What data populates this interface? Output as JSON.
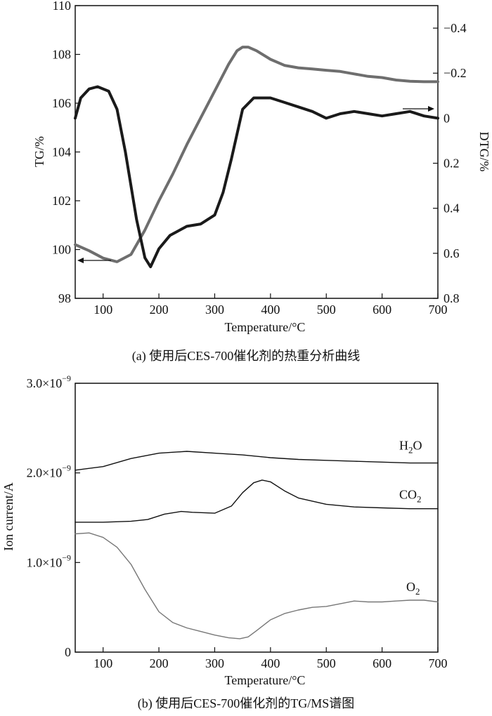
{
  "chart_data": [
    {
      "type": "line",
      "caption": "(a) 使用后CES-700催化剂的热重分析曲线",
      "xlabel": "Temperature/°C",
      "ylabel": "TG/%",
      "y2label": "DTG/%",
      "xlim": [
        50,
        700
      ],
      "ylim": [
        98,
        110
      ],
      "y2lim": [
        0.8,
        -0.5
      ],
      "y2_inverted": true,
      "xticks": [
        100,
        200,
        300,
        400,
        500,
        600,
        700
      ],
      "yticks": [
        98,
        100,
        102,
        104,
        106,
        108,
        110
      ],
      "y2ticks": [
        0.8,
        0.6,
        0.4,
        0.2,
        0,
        -0.2,
        -0.4
      ],
      "y2tick_labels": [
        "0.8",
        "0.6",
        "0.4",
        "0.2",
        "0",
        "−0.2",
        "−0.4"
      ],
      "series": [
        {
          "axis": "left",
          "color": "#6e6e6e",
          "x": [
            50,
            75,
            100,
            125,
            150,
            175,
            200,
            225,
            250,
            275,
            300,
            325,
            340,
            350,
            360,
            375,
            400,
            425,
            450,
            475,
            500,
            525,
            550,
            575,
            600,
            625,
            650,
            675,
            700
          ],
          "y": [
            100.2,
            99.95,
            99.65,
            99.5,
            99.8,
            100.8,
            102.0,
            103.1,
            104.3,
            105.4,
            106.5,
            107.6,
            108.15,
            108.3,
            108.3,
            108.15,
            107.8,
            107.55,
            107.45,
            107.4,
            107.35,
            107.3,
            107.2,
            107.1,
            107.05,
            106.95,
            106.9,
            106.88,
            106.88
          ]
        },
        {
          "axis": "right",
          "color": "#1a1a1a",
          "x": [
            50,
            60,
            75,
            90,
            110,
            125,
            140,
            160,
            175,
            185,
            200,
            220,
            250,
            275,
            300,
            315,
            330,
            350,
            370,
            385,
            400,
            425,
            450,
            475,
            500,
            525,
            550,
            575,
            600,
            625,
            650,
            675,
            700
          ],
          "y": [
            0.0,
            -0.09,
            -0.13,
            -0.14,
            -0.12,
            -0.04,
            0.15,
            0.45,
            0.62,
            0.66,
            0.58,
            0.52,
            0.48,
            0.47,
            0.43,
            0.33,
            0.18,
            -0.04,
            -0.09,
            -0.09,
            -0.09,
            -0.07,
            -0.05,
            -0.03,
            0.0,
            -0.02,
            -0.03,
            -0.02,
            -0.01,
            -0.02,
            -0.03,
            -0.01,
            0.0
          ]
        }
      ]
    },
    {
      "type": "line",
      "caption": "(b) 使用后CES-700催化剂的TG/MS谱图",
      "xlabel": "Temperature/°C",
      "ylabel": "Ion current/A",
      "xlim": [
        50,
        700
      ],
      "ylim": [
        0,
        3e-09
      ],
      "xticks": [
        100,
        200,
        300,
        400,
        500,
        600,
        700
      ],
      "yticks": [
        0,
        1e-09,
        2e-09,
        3e-09
      ],
      "ytick_labels": [
        "0",
        "1.0×10",
        "2.0×10",
        "3.0×10"
      ],
      "ytick_exponent": "−9",
      "series": [
        {
          "name": "H2O",
          "label_main": "H",
          "label_sub": "2",
          "label_tail": "O",
          "color": "#111111",
          "x": [
            50,
            100,
            150,
            200,
            250,
            300,
            350,
            400,
            450,
            500,
            550,
            600,
            650,
            700
          ],
          "y": [
            2.03e-09,
            2.07e-09,
            2.16e-09,
            2.22e-09,
            2.24e-09,
            2.22e-09,
            2.2e-09,
            2.17e-09,
            2.15e-09,
            2.14e-09,
            2.13e-09,
            2.12e-09,
            2.11e-09,
            2.11e-09
          ]
        },
        {
          "name": "CO2",
          "label_main": "CO",
          "label_sub": "2",
          "label_tail": "",
          "color": "#111111",
          "x": [
            50,
            100,
            150,
            180,
            210,
            240,
            260,
            300,
            330,
            350,
            370,
            385,
            400,
            425,
            450,
            500,
            550,
            600,
            650,
            700
          ],
          "y": [
            1.45e-09,
            1.45e-09,
            1.46e-09,
            1.48e-09,
            1.54e-09,
            1.57e-09,
            1.56e-09,
            1.55e-09,
            1.63e-09,
            1.78e-09,
            1.89e-09,
            1.92e-09,
            1.9e-09,
            1.8e-09,
            1.72e-09,
            1.65e-09,
            1.62e-09,
            1.61e-09,
            1.6e-09,
            1.6e-09
          ]
        },
        {
          "name": "O2",
          "label_main": "O",
          "label_sub": "2",
          "label_tail": "",
          "color": "#777777",
          "x": [
            50,
            75,
            100,
            125,
            150,
            175,
            200,
            225,
            250,
            275,
            300,
            325,
            345,
            360,
            375,
            400,
            425,
            450,
            475,
            500,
            525,
            550,
            575,
            600,
            625,
            650,
            675,
            700
          ],
          "y": [
            1.32e-09,
            1.33e-09,
            1.28e-09,
            1.17e-09,
            9.8e-10,
            7e-10,
            4.5e-10,
            3.3e-10,
            2.7e-10,
            2.3e-10,
            1.9e-10,
            1.6e-10,
            1.5e-10,
            1.7e-10,
            2.4e-10,
            3.6e-10,
            4.3e-10,
            4.7e-10,
            5e-10,
            5.1e-10,
            5.4e-10,
            5.7e-10,
            5.6e-10,
            5.6e-10,
            5.7e-10,
            5.8e-10,
            5.8e-10,
            5.6e-10
          ]
        }
      ]
    }
  ]
}
